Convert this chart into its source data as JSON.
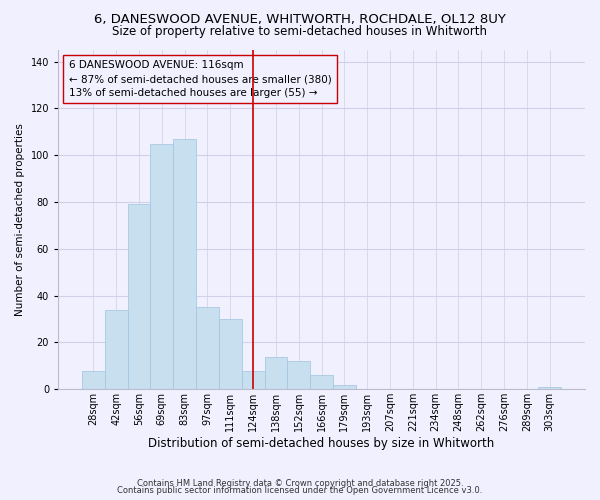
{
  "title": "6, DANESWOOD AVENUE, WHITWORTH, ROCHDALE, OL12 8UY",
  "subtitle": "Size of property relative to semi-detached houses in Whitworth",
  "xlabel": "Distribution of semi-detached houses by size in Whitworth",
  "ylabel": "Number of semi-detached properties",
  "bar_labels": [
    "28sqm",
    "42sqm",
    "56sqm",
    "69sqm",
    "83sqm",
    "97sqm",
    "111sqm",
    "124sqm",
    "138sqm",
    "152sqm",
    "166sqm",
    "179sqm",
    "193sqm",
    "207sqm",
    "221sqm",
    "234sqm",
    "248sqm",
    "262sqm",
    "276sqm",
    "289sqm",
    "303sqm"
  ],
  "bar_heights": [
    8,
    34,
    79,
    105,
    107,
    35,
    30,
    8,
    14,
    12,
    6,
    2,
    0,
    0,
    0,
    0,
    0,
    0,
    0,
    0,
    1
  ],
  "bar_color": "#c8dff0",
  "bar_edge_color": "#a0c4e0",
  "vline_x": 7.0,
  "vline_color": "#cc0000",
  "annotation_line1": "6 DANESWOOD AVENUE: 116sqm",
  "annotation_line2": "← 87% of semi-detached houses are smaller (380)",
  "annotation_line3": "13% of semi-detached houses are larger (55) →",
  "ylim": [
    0,
    145
  ],
  "yticks": [
    0,
    20,
    40,
    60,
    80,
    100,
    120,
    140
  ],
  "footer1": "Contains HM Land Registry data © Crown copyright and database right 2025.",
  "footer2": "Contains public sector information licensed under the Open Government Licence v3.0.",
  "bg_color": "#f0f0ff",
  "grid_color": "#d0d0e8",
  "title_fontsize": 9.5,
  "subtitle_fontsize": 8.5,
  "xlabel_fontsize": 8.5,
  "ylabel_fontsize": 7.5,
  "tick_fontsize": 7,
  "annotation_fontsize": 7.5,
  "footer_fontsize": 6
}
